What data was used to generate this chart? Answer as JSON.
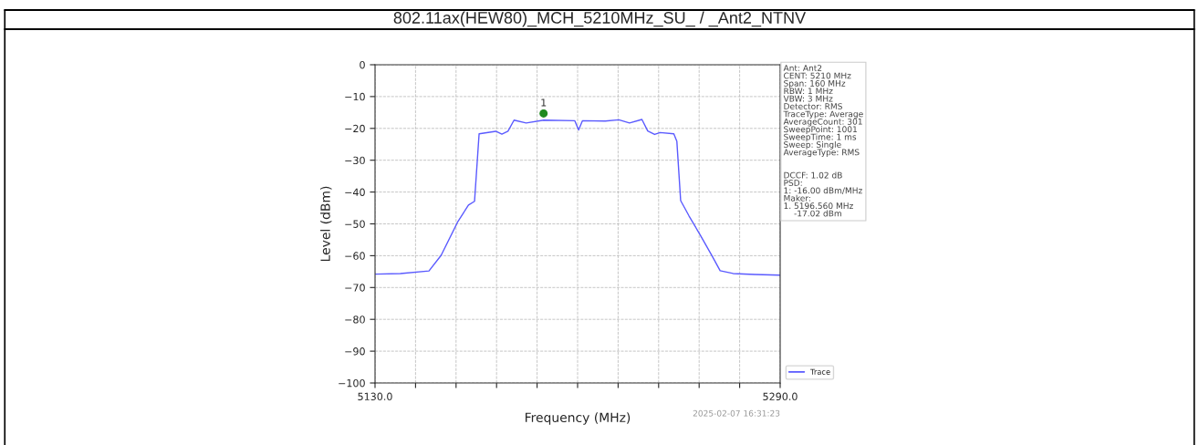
{
  "chart_data": {
    "type": "line",
    "title": "802.11ax(HEW80)_MCH_5210MHz_SU_ / _Ant2_NTNV",
    "xlabel": "Frequency (MHz)",
    "ylabel": "Level (dBm)",
    "xlim": [
      5130.0,
      5290.0
    ],
    "xticks": [
      {
        "value": 5130,
        "label": "5130.0"
      },
      {
        "value": 5146,
        "label": null
      },
      {
        "value": 5162,
        "label": null
      },
      {
        "value": 5178,
        "label": null
      },
      {
        "value": 5194,
        "label": null
      },
      {
        "value": 5210,
        "label": null
      },
      {
        "value": 5226,
        "label": null
      },
      {
        "value": 5242,
        "label": null
      },
      {
        "value": 5258,
        "label": null
      },
      {
        "value": 5274,
        "label": null
      },
      {
        "value": 5290,
        "label": "5290.0"
      }
    ],
    "ylim": [
      -100,
      0
    ],
    "yticks": [
      -100,
      -90,
      -80,
      -70,
      -60,
      -50,
      -40,
      -30,
      -20,
      -10,
      0
    ],
    "grid": true,
    "legend": "bottom right",
    "series": [
      {
        "name": "Trace",
        "color": "#5a5aff",
        "x": [
          5130.0,
          5140.0,
          5151.3,
          5156.1,
          5162.7,
          5166.9,
          5169.3,
          5171.1,
          5177.7,
          5180.1,
          5182.5,
          5184.9,
          5189.7,
          5196.6,
          5208.9,
          5210.4,
          5211.9,
          5220.9,
          5226.3,
          5230.5,
          5235.4,
          5237.7,
          5240.4,
          5242.6,
          5248.0,
          5249.2,
          5250.7,
          5254.0,
          5258.2,
          5263.0,
          5266.3,
          5271.4,
          5280.0,
          5290.0
        ],
        "values": [
          -65.8,
          -65.6,
          -64.8,
          -59.9,
          -49.3,
          -44.1,
          -42.9,
          -21.7,
          -20.9,
          -21.8,
          -20.9,
          -17.4,
          -18.3,
          -17.4,
          -17.6,
          -20.5,
          -17.6,
          -17.7,
          -17.3,
          -18.3,
          -17.2,
          -20.8,
          -21.9,
          -21.3,
          -21.7,
          -24.1,
          -42.7,
          -47.5,
          -53.2,
          -59.9,
          -64.7,
          -65.6,
          -65.9,
          -66.1
        ]
      },
      {
        "type": "scatter",
        "color": "#1f8a1f",
        "marker": "circle",
        "x": [
          5196.56
        ],
        "values": [
          -15.3
        ]
      }
    ],
    "annotations": [
      {
        "text": "1",
        "x": 5196.56,
        "y": -15.3
      },
      "Ant: Ant2\nCENT: 5210 MHz\nSpan: 160 MHz\nRBW: 1 MHz\nVBW: 3 MHz\nDetector: RMS\nTraceType: Average\nAverageCount: 301\nSweepPoint: 1001\nSweepTime: 1 ms\nSweep: Single\nAverageType: RMS\n\n\nDCCF: 1.02 dB\nPSD:\n1: -16.00 dBm/MHz\nMaker:\n1. 5196.560 MHz\n    -17.02 dBm",
      "2025-02-07 16:31:23"
    ]
  }
}
